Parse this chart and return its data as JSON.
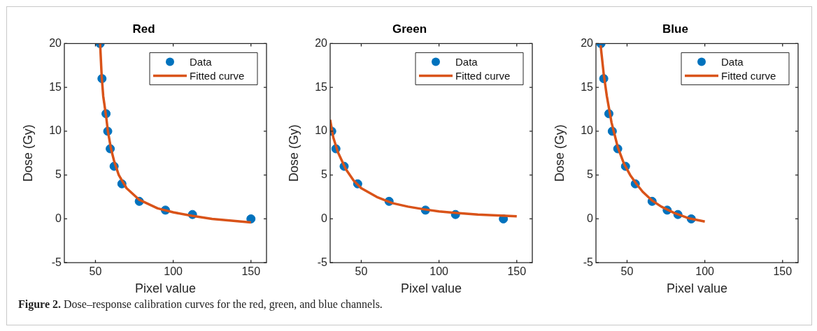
{
  "chart_data": [
    {
      "type": "scatter",
      "title": "Red",
      "xlabel": "Pixel value",
      "ylabel": "Dose (Gy)",
      "xlim": [
        30,
        160
      ],
      "ylim": [
        -5,
        20
      ],
      "xticks": [
        50,
        100,
        150
      ],
      "yticks": [
        -5,
        0,
        5,
        10,
        15,
        20
      ],
      "grid": false,
      "legend": "top right",
      "annotations": [
        "Figure 2. Dose–response calibration curves for the red, green, and blue channels."
      ],
      "series": [
        {
          "name": "Data",
          "marker": "circle",
          "color": "#0072bd",
          "x": [
            53,
            54.2,
            56.8,
            57.9,
            59.5,
            62,
            67,
            78.2,
            95,
            112.4,
            150
          ],
          "values": [
            20,
            16,
            12,
            10,
            8,
            6,
            4,
            2,
            1,
            0.5,
            0
          ]
        },
        {
          "name": "Fitted curve",
          "type": "line",
          "marker": "none",
          "color": "#d95319",
          "x": [
            53,
            54,
            55,
            57,
            58,
            60,
            62,
            65,
            70,
            78,
            90,
            100,
            112,
            125,
            140,
            150
          ],
          "values": [
            20,
            16.3,
            14,
            11.5,
            10,
            8,
            6.6,
            5,
            3.5,
            2.2,
            1.2,
            0.75,
            0.35,
            0,
            -0.25,
            -0.4
          ]
        }
      ]
    },
    {
      "type": "scatter",
      "title": "Green",
      "xlabel": "Pixel value",
      "ylabel": "Dose (Gy)",
      "xlim": [
        30,
        160
      ],
      "ylim": [
        -5,
        20
      ],
      "xticks": [
        50,
        100,
        150
      ],
      "yticks": [
        -5,
        0,
        5,
        10,
        15,
        20
      ],
      "grid": false,
      "legend": "top right",
      "series": [
        {
          "name": "Data",
          "marker": "circle",
          "color": "#0072bd",
          "x": [
            31,
            33.7,
            39,
            47.7,
            67.9,
            91.3,
            110.6,
            141.4
          ],
          "values": [
            10,
            8,
            6,
            4,
            2,
            1,
            0.5,
            0
          ]
        },
        {
          "name": "Fitted curve",
          "type": "line",
          "marker": "none",
          "color": "#d95319",
          "x": [
            30,
            32,
            35,
            40,
            45,
            50,
            60,
            70,
            80,
            90,
            100,
            110,
            125,
            150
          ],
          "values": [
            11.3,
            9.3,
            7.6,
            5.7,
            4.4,
            3.5,
            2.5,
            1.8,
            1.4,
            1.1,
            0.85,
            0.7,
            0.5,
            0.3
          ]
        }
      ]
    },
    {
      "type": "scatter",
      "title": "Blue",
      "xlabel": "Pixel value",
      "ylabel": "Dose (Gy)",
      "xlim": [
        30,
        160
      ],
      "ylim": [
        -5,
        20
      ],
      "xticks": [
        50,
        100,
        150
      ],
      "yticks": [
        -5,
        0,
        5,
        10,
        15,
        20
      ],
      "grid": false,
      "legend": "top right",
      "series": [
        {
          "name": "Data",
          "marker": "circle",
          "color": "#0072bd",
          "x": [
            33.2,
            35,
            38.3,
            40.5,
            44,
            49,
            55.3,
            66.1,
            75.8,
            82.7,
            91.3
          ],
          "values": [
            20,
            16,
            12,
            10,
            8,
            6,
            4,
            2,
            1,
            0.5,
            0
          ]
        },
        {
          "name": "Fitted curve",
          "type": "line",
          "marker": "none",
          "color": "#d95319",
          "x": [
            33,
            35,
            37,
            40,
            44,
            48,
            52,
            56,
            60,
            66,
            72,
            80,
            90,
            100
          ],
          "values": [
            19.8,
            16.5,
            14,
            11,
            8.2,
            6.3,
            5,
            4,
            3.1,
            2.1,
            1.4,
            0.7,
            0.05,
            -0.3
          ]
        }
      ]
    }
  ]
}
